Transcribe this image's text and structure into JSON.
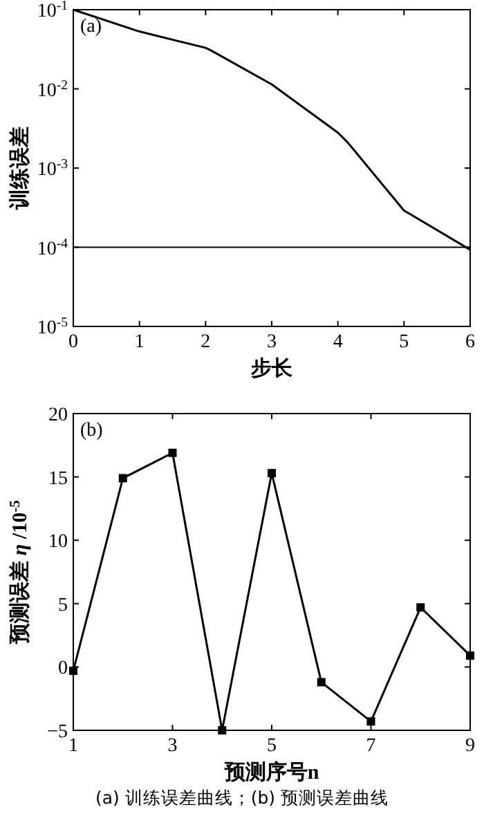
{
  "chart_data": [
    {
      "type": "line",
      "xlabel": "步长",
      "ylabel": "训练误差",
      "log": "y",
      "marker": "none",
      "annotations": [
        "(a)"
      ],
      "x": [
        0,
        1,
        2,
        2.1,
        3,
        4,
        4.15,
        5,
        5.1,
        6
      ],
      "series": [
        {
          "color": "#000000",
          "values": [
            0.1,
            0.053,
            0.033,
            0.03,
            0.0114,
            0.0028,
            0.0021,
            0.00029,
            0.00026,
            9.3e-05
          ]
        }
      ],
      "xlim": [
        0,
        6
      ],
      "xticks": [
        0,
        1,
        2,
        3,
        4,
        5,
        6
      ],
      "ylim": [
        1e-05,
        0.1
      ],
      "yticks": [
        {
          "value": 1e-05,
          "label": "10$^{-5}$"
        },
        {
          "value": 0.0001,
          "label": "10$^{-4}$"
        },
        {
          "value": 0.001,
          "label": "10$^{-3}$"
        },
        {
          "value": 0.01,
          "label": "10$^{-2}$"
        },
        {
          "value": 0.1,
          "label": "10$^{-1}$"
        }
      ],
      "ref_lines": [
        {
          "axis": "y",
          "value": 0.0001,
          "color": "#000000"
        }
      ]
    },
    {
      "type": "line",
      "xlabel": "预测序号n",
      "ylabel": "预测误差 *η* /10$^{-5}$",
      "marker": "square",
      "annotations": [
        "(b)",
        "(a) 训练误差曲线；(b) 预测误差曲线"
      ],
      "x": [
        1,
        2,
        3,
        4,
        5,
        6,
        7,
        8,
        9
      ],
      "series": [
        {
          "color": "#000000",
          "values": [
            -0.3,
            14.9,
            16.9,
            -5,
            15.3,
            -1.2,
            -4.3,
            4.7,
            0.9
          ]
        }
      ],
      "xlim": [
        1,
        9
      ],
      "xticks": [
        1,
        3,
        5,
        7,
        9
      ],
      "ylim": [
        -5,
        20
      ],
      "yticks": [
        -5,
        0,
        5,
        10,
        15,
        20
      ]
    }
  ]
}
